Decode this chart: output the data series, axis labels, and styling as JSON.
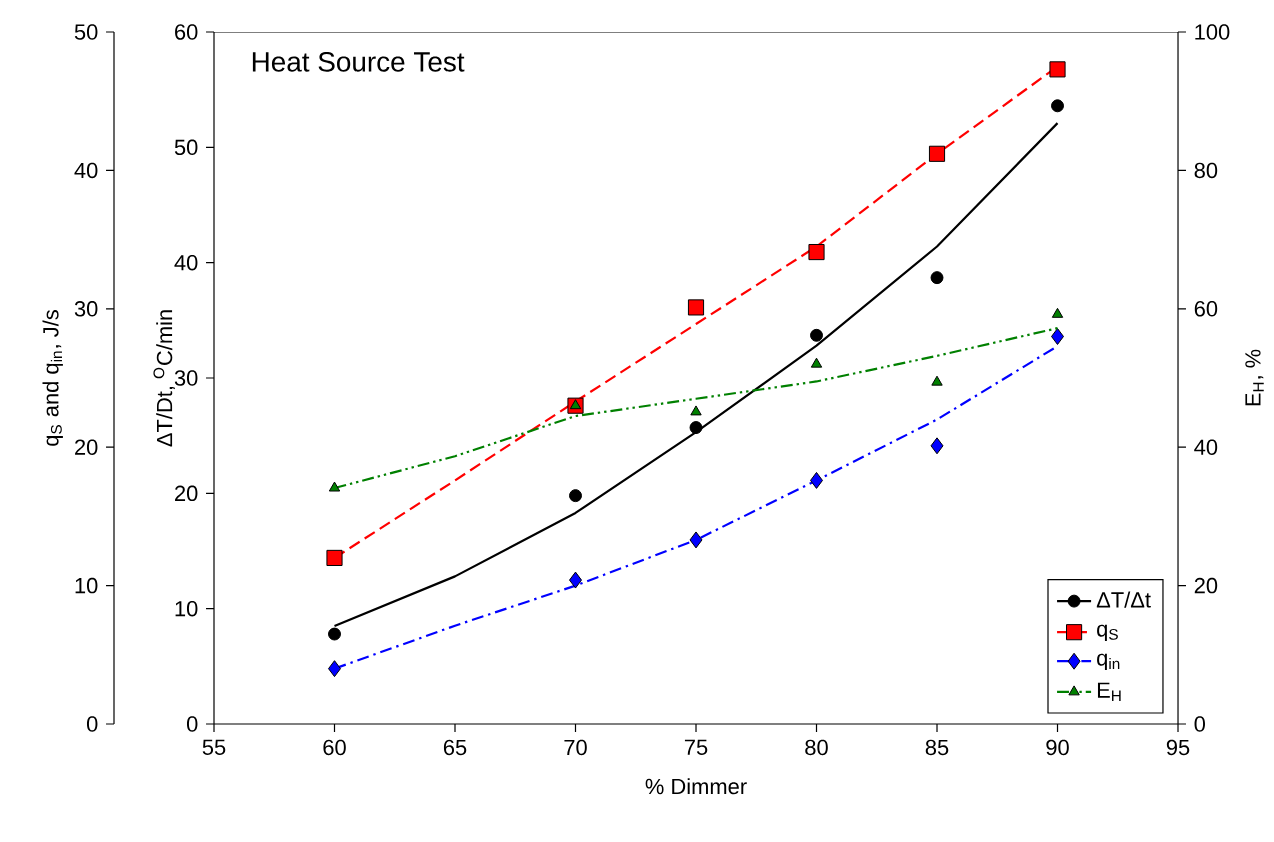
{
  "chart_data": {
    "type": "line",
    "title": "Heat Source Test",
    "xlabel": "% Dimmer",
    "ylabel": "q$_{S}$ and q$_{in}$, J/s",
    "y2label": "E$_{H}$, %",
    "y3label": "ΔT/Dt, $^{O}$C/min",
    "xlim": [
      55,
      95
    ],
    "xticks": [
      55,
      60,
      65,
      70,
      75,
      80,
      85,
      90,
      95
    ],
    "ylim": [
      0,
      50
    ],
    "yticks": [
      0,
      10,
      20,
      30,
      40,
      50
    ],
    "y2lim": [
      0,
      100
    ],
    "y2ticks": [
      0,
      20,
      40,
      60,
      80,
      100
    ],
    "y3lim": [
      0,
      60
    ],
    "y3ticks": [
      0,
      10,
      20,
      30,
      40,
      50,
      60
    ],
    "legend": "bottom right",
    "grid": false,
    "series": [
      {
        "name": "ΔT/Δt",
        "type": "scatter",
        "marker": "circle",
        "color": "#000000",
        "axis": "y3",
        "x": [
          60,
          70,
          75,
          80,
          85,
          90
        ],
        "values": [
          7.8,
          19.8,
          25.7,
          33.7,
          38.7,
          53.6
        ]
      },
      {
        "line_style": "solid",
        "color": "#000000",
        "axis": "y3",
        "x": [
          60,
          65,
          70,
          75,
          80,
          85,
          90
        ],
        "values": [
          8.5,
          12.8,
          18.3,
          25.3,
          32.8,
          41.4,
          52.1
        ]
      },
      {
        "name": "q$_{S}$",
        "type": "scatter",
        "marker": "square",
        "color": "#ff0000",
        "axis": "y",
        "x": [
          60,
          70,
          75,
          80,
          85,
          90
        ],
        "values": [
          12.0,
          23.0,
          30.1,
          34.1,
          41.2,
          47.3
        ]
      },
      {
        "line_style": "dashed",
        "color": "#ff0000",
        "axis": "y",
        "x": [
          60,
          65,
          70,
          75,
          80,
          85,
          90
        ],
        "values": [
          12.0,
          17.6,
          23.3,
          28.9,
          34.5,
          41.2,
          47.5
        ]
      },
      {
        "name": "q$_{in}$",
        "type": "scatter",
        "marker": "diamond",
        "color": "#0000ff",
        "axis": "y",
        "x": [
          60,
          70,
          75,
          80,
          85,
          90
        ],
        "values": [
          4.0,
          10.4,
          13.3,
          17.6,
          20.1,
          28.0
        ]
      },
      {
        "line_style": "dashdot",
        "color": "#0000ff",
        "axis": "y",
        "x": [
          60,
          65,
          70,
          75,
          80,
          85,
          90
        ],
        "values": [
          4.0,
          7.1,
          10.0,
          13.3,
          17.6,
          22.0,
          27.3
        ]
      },
      {
        "name": "E$_{H}$",
        "type": "scatter",
        "marker": "triangle",
        "color": "#008000",
        "axis": "y2",
        "x": [
          60,
          70,
          75,
          80,
          85,
          90
        ],
        "values": [
          34.1,
          46.0,
          45.1,
          52.0,
          49.4,
          59.2
        ]
      },
      {
        "line_style": "dashdotdot",
        "color": "#008000",
        "axis": "y2",
        "x": [
          60,
          65,
          70,
          75,
          80,
          85,
          90
        ],
        "values": [
          34.1,
          38.7,
          44.5,
          47.0,
          49.5,
          53.2,
          57.2
        ]
      }
    ]
  }
}
